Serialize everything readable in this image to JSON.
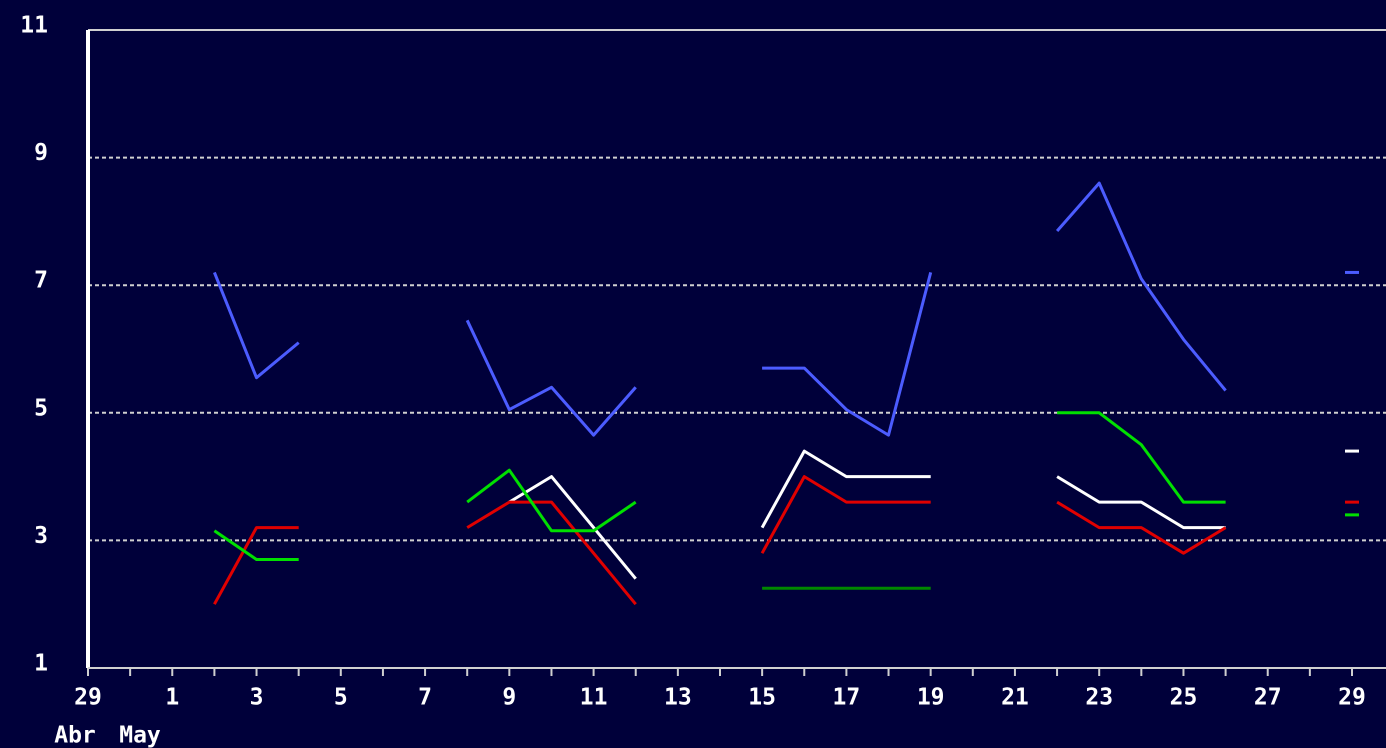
{
  "chart_data": {
    "type": "line",
    "categories": [
      "29",
      null,
      "1",
      null,
      "3",
      null,
      "5",
      null,
      "7",
      null,
      "9",
      null,
      "11",
      null,
      "13",
      null,
      "15",
      null,
      "17",
      null,
      "19",
      null,
      "21",
      null,
      "23",
      null,
      "25",
      null,
      "27",
      null,
      "29"
    ],
    "month_labels": [
      "Abr",
      "May"
    ],
    "ylim": [
      1,
      11
    ],
    "yticks": [
      1,
      3,
      5,
      7,
      9,
      11
    ],
    "grid": true,
    "series": [
      {
        "color": "#4c5cff",
        "values": [
          null,
          null,
          null,
          7.2,
          5.55,
          6.1,
          null,
          null,
          null,
          6.45,
          5.05,
          5.4,
          4.65,
          5.4,
          null,
          null,
          5.7,
          5.7,
          5.05,
          4.65,
          7.2,
          null,
          null,
          7.85,
          8.6,
          7.1,
          6.15,
          5.35,
          null,
          null,
          7.2
        ]
      },
      {
        "color": "#ffffff",
        "values": [
          null,
          null,
          null,
          null,
          null,
          null,
          null,
          null,
          null,
          null,
          3.6,
          4.0,
          3.2,
          2.4,
          null,
          null,
          3.2,
          4.4,
          4.0,
          4.0,
          4.0,
          null,
          null,
          4.0,
          3.6,
          3.6,
          3.2,
          3.2,
          null,
          null,
          4.4
        ]
      },
      {
        "color": "#e00000",
        "values": [
          null,
          null,
          null,
          2.0,
          3.2,
          3.2,
          null,
          null,
          null,
          3.2,
          3.6,
          3.6,
          2.8,
          2.0,
          null,
          null,
          2.8,
          4.0,
          3.6,
          3.6,
          3.6,
          null,
          null,
          3.6,
          3.2,
          3.2,
          2.8,
          3.2,
          null,
          null,
          3.6
        ]
      },
      {
        "color": "#00e000",
        "values": [
          null,
          null,
          null,
          3.15,
          2.7,
          2.7,
          null,
          null,
          null,
          3.6,
          4.1,
          3.15,
          3.15,
          3.6,
          null,
          null,
          null,
          null,
          null,
          null,
          null,
          null,
          null,
          5.0,
          5.0,
          4.5,
          3.6,
          3.6,
          null,
          null,
          3.4
        ]
      },
      {
        "color": "#008800",
        "values": [
          null,
          null,
          null,
          null,
          null,
          null,
          null,
          null,
          null,
          null,
          null,
          null,
          null,
          null,
          null,
          null,
          2.25,
          2.25,
          2.25,
          2.25,
          2.25,
          null,
          null,
          null,
          null,
          null,
          null,
          null,
          null,
          null,
          null
        ]
      }
    ]
  }
}
